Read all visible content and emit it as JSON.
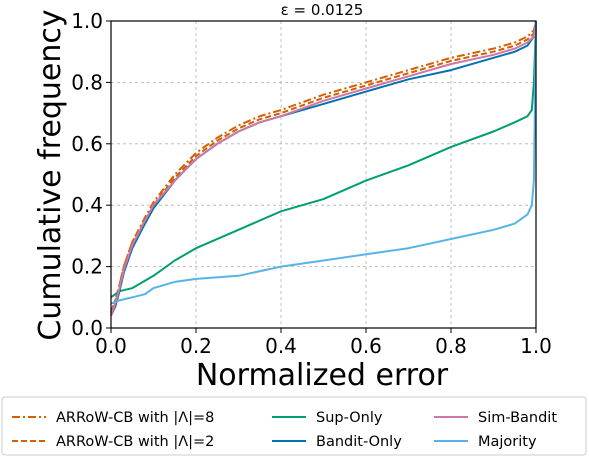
{
  "chart_data": {
    "type": "line",
    "title": "ε = 0.0125",
    "xlabel": "Normalized error",
    "ylabel": "Cumulative frequency",
    "xlim": [
      0.0,
      1.0
    ],
    "ylim": [
      0.0,
      1.0
    ],
    "xticks": [
      "0.0",
      "0.2",
      "0.4",
      "0.6",
      "0.8",
      "1.0"
    ],
    "yticks": [
      "0.0",
      "0.2",
      "0.4",
      "0.6",
      "0.8",
      "1.0"
    ],
    "grid": true,
    "legend_placement": "bottom (outside)",
    "series": [
      {
        "name": "ARRoW-CB with |Λ|=8",
        "color": "#d55e00",
        "dash": "dashdot",
        "x": [
          0.0,
          0.01,
          0.02,
          0.03,
          0.05,
          0.08,
          0.1,
          0.15,
          0.2,
          0.25,
          0.3,
          0.35,
          0.4,
          0.5,
          0.6,
          0.7,
          0.8,
          0.9,
          0.95,
          0.98,
          0.995,
          1.0
        ],
        "y": [
          0.05,
          0.09,
          0.14,
          0.2,
          0.28,
          0.36,
          0.41,
          0.5,
          0.57,
          0.62,
          0.66,
          0.69,
          0.71,
          0.76,
          0.8,
          0.84,
          0.88,
          0.91,
          0.93,
          0.95,
          0.97,
          1.0
        ]
      },
      {
        "name": "ARRoW-CB with |Λ|=2",
        "color": "#d55e00",
        "dash": "dashed",
        "x": [
          0.0,
          0.01,
          0.02,
          0.03,
          0.05,
          0.08,
          0.1,
          0.15,
          0.2,
          0.25,
          0.3,
          0.35,
          0.4,
          0.5,
          0.6,
          0.7,
          0.8,
          0.9,
          0.95,
          0.98,
          0.995,
          1.0
        ],
        "y": [
          0.05,
          0.09,
          0.14,
          0.2,
          0.28,
          0.35,
          0.4,
          0.49,
          0.56,
          0.61,
          0.65,
          0.68,
          0.7,
          0.75,
          0.79,
          0.83,
          0.87,
          0.9,
          0.92,
          0.94,
          0.96,
          1.0
        ]
      },
      {
        "name": "Sup-Only",
        "color": "#009e73",
        "dash": "solid",
        "x": [
          0.0,
          0.02,
          0.05,
          0.1,
          0.15,
          0.2,
          0.3,
          0.4,
          0.5,
          0.6,
          0.7,
          0.8,
          0.9,
          0.95,
          0.98,
          0.99,
          0.995,
          1.0
        ],
        "y": [
          0.1,
          0.12,
          0.13,
          0.17,
          0.22,
          0.26,
          0.32,
          0.38,
          0.42,
          0.48,
          0.53,
          0.59,
          0.64,
          0.67,
          0.69,
          0.71,
          0.8,
          1.0
        ]
      },
      {
        "name": "Bandit-Only",
        "color": "#0072b2",
        "dash": "solid",
        "x": [
          0.0,
          0.01,
          0.02,
          0.03,
          0.05,
          0.08,
          0.1,
          0.15,
          0.2,
          0.25,
          0.3,
          0.35,
          0.4,
          0.5,
          0.6,
          0.7,
          0.8,
          0.9,
          0.95,
          0.98,
          0.995,
          1.0
        ],
        "y": [
          0.04,
          0.07,
          0.12,
          0.18,
          0.26,
          0.34,
          0.39,
          0.48,
          0.55,
          0.6,
          0.64,
          0.67,
          0.69,
          0.73,
          0.77,
          0.81,
          0.84,
          0.88,
          0.9,
          0.92,
          0.95,
          1.0
        ]
      },
      {
        "name": "Sim-Bandit",
        "color": "#cc79a7",
        "dash": "solid",
        "x": [
          0.0,
          0.01,
          0.02,
          0.03,
          0.05,
          0.08,
          0.1,
          0.15,
          0.2,
          0.25,
          0.3,
          0.35,
          0.4,
          0.5,
          0.6,
          0.7,
          0.8,
          0.9,
          0.95,
          0.98,
          0.995,
          1.0
        ],
        "y": [
          0.04,
          0.08,
          0.13,
          0.19,
          0.27,
          0.35,
          0.4,
          0.48,
          0.55,
          0.6,
          0.64,
          0.67,
          0.69,
          0.74,
          0.78,
          0.82,
          0.86,
          0.89,
          0.91,
          0.93,
          0.95,
          1.0
        ]
      },
      {
        "name": "Majority",
        "color": "#56b4e9",
        "dash": "solid",
        "x": [
          0.0,
          0.02,
          0.05,
          0.08,
          0.1,
          0.15,
          0.2,
          0.3,
          0.4,
          0.5,
          0.6,
          0.7,
          0.8,
          0.9,
          0.95,
          0.98,
          0.99,
          0.995,
          1.0
        ],
        "y": [
          0.08,
          0.09,
          0.1,
          0.11,
          0.13,
          0.15,
          0.16,
          0.17,
          0.2,
          0.22,
          0.24,
          0.26,
          0.29,
          0.32,
          0.34,
          0.37,
          0.4,
          0.48,
          1.0
        ]
      }
    ]
  }
}
